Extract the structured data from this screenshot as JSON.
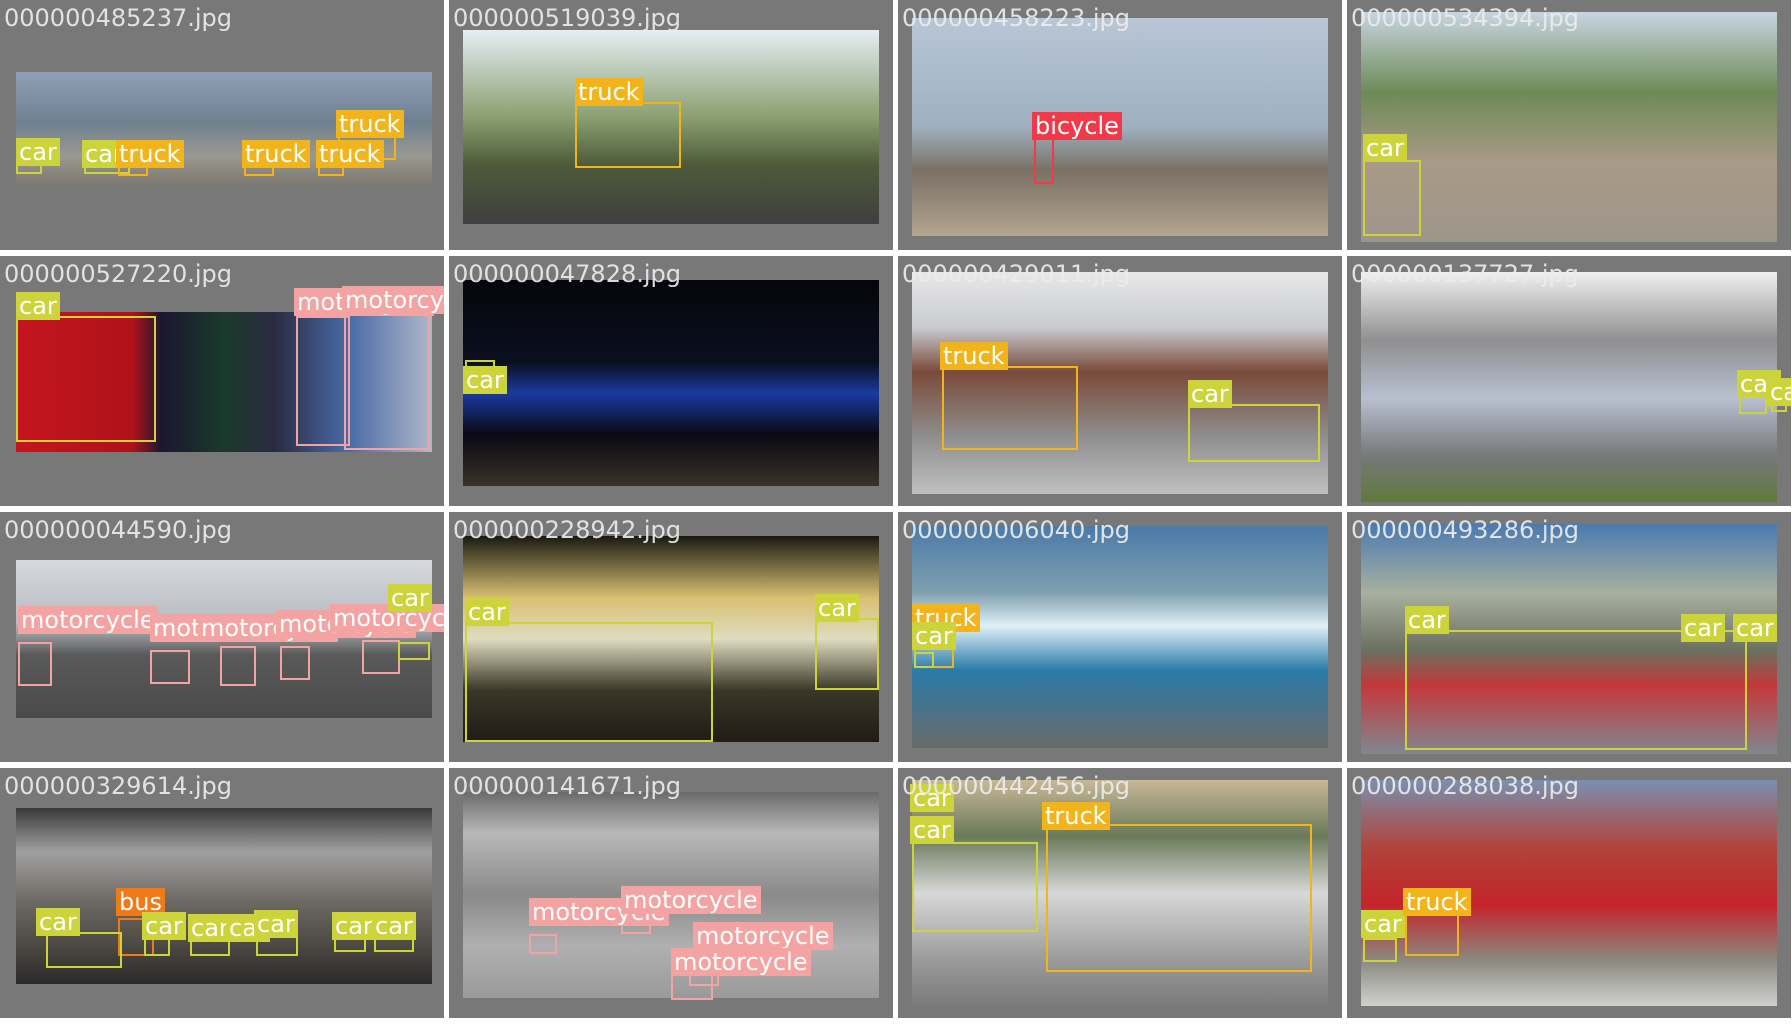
{
  "colors": {
    "car": "#cdd33a",
    "truck": "#f2b41c",
    "motorcycle": "#f4a3a3",
    "bicycle": "#f03a4a",
    "bus": "#ee7a1a"
  },
  "images": [
    {
      "filename": "000000485237.jpg",
      "labels": [
        "car",
        "car",
        "truck",
        "truck",
        "truck",
        "truck"
      ]
    },
    {
      "filename": "000000519039.jpg",
      "labels": [
        "truck"
      ]
    },
    {
      "filename": "000000458223.jpg",
      "labels": [
        "bicycle"
      ]
    },
    {
      "filename": "000000534394.jpg",
      "labels": [
        "car"
      ]
    },
    {
      "filename": "000000527220.jpg",
      "labels": [
        "car",
        "motorcycle",
        "motorcycle"
      ]
    },
    {
      "filename": "000000047828.jpg",
      "labels": [
        "car"
      ]
    },
    {
      "filename": "000000429011.jpg",
      "labels": [
        "truck",
        "car"
      ]
    },
    {
      "filename": "000000137727.jpg",
      "labels": [
        "car",
        "car"
      ]
    },
    {
      "filename": "000000044590.jpg",
      "labels": [
        "motorcycle",
        "motorcycle",
        "motorcycle",
        "motorcycle",
        "motorcycle",
        "car"
      ]
    },
    {
      "filename": "000000228942.jpg",
      "labels": [
        "car",
        "car"
      ]
    },
    {
      "filename": "000000006040.jpg",
      "labels": [
        "truck",
        "car"
      ]
    },
    {
      "filename": "000000493286.jpg",
      "labels": [
        "car",
        "car",
        "car"
      ]
    },
    {
      "filename": "000000329614.jpg",
      "labels": [
        "bus",
        "car",
        "car",
        "car",
        "car",
        "car",
        "car",
        "car"
      ]
    },
    {
      "filename": "000000141671.jpg",
      "labels": [
        "motorcycle",
        "motorcycle",
        "motorcycle",
        "motorcycle"
      ]
    },
    {
      "filename": "000000442456.jpg",
      "labels": [
        "car",
        "car",
        "truck"
      ]
    },
    {
      "filename": "000000288038.jpg",
      "labels": [
        "car",
        "truck"
      ]
    }
  ]
}
